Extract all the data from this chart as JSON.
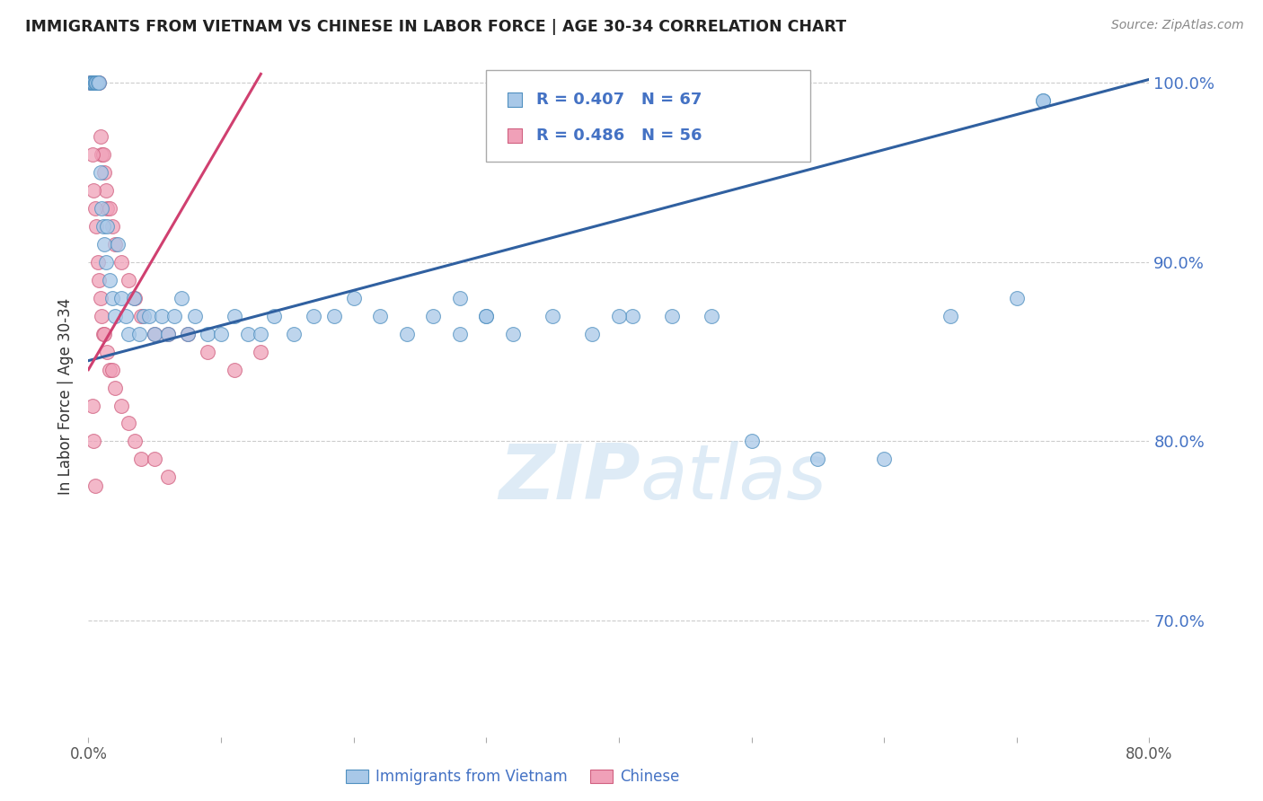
{
  "title": "IMMIGRANTS FROM VIETNAM VS CHINESE IN LABOR FORCE | AGE 30-34 CORRELATION CHART",
  "source": "Source: ZipAtlas.com",
  "ylabel": "In Labor Force | Age 30-34",
  "xlim": [
    0.0,
    0.8
  ],
  "ylim": [
    0.635,
    1.015
  ],
  "y_ticks": [
    0.7,
    0.8,
    0.9,
    1.0
  ],
  "y_tick_labels": [
    "70.0%",
    "80.0%",
    "90.0%",
    "100.0%"
  ],
  "x_ticks": [
    0.0,
    0.1,
    0.2,
    0.3,
    0.4,
    0.5,
    0.6,
    0.7,
    0.8
  ],
  "x_tick_labels": [
    "0.0%",
    "",
    "",
    "",
    "",
    "",
    "",
    "",
    "80.0%"
  ],
  "legend_blue_r": "R = 0.407",
  "legend_blue_n": "N = 67",
  "legend_pink_r": "R = 0.486",
  "legend_pink_n": "N = 56",
  "blue_fill": "#a8c8e8",
  "blue_edge": "#5090c0",
  "pink_fill": "#f0a0b8",
  "pink_edge": "#d06080",
  "blue_line": "#3060a0",
  "pink_line": "#d04070",
  "watermark_zip": "ZIP",
  "watermark_atlas": "atlas",
  "bottom_legend_blue": "Immigrants from Vietnam",
  "bottom_legend_pink": "Chinese",
  "vietnam_x": [
    0.002,
    0.002,
    0.003,
    0.003,
    0.004,
    0.004,
    0.005,
    0.005,
    0.006,
    0.006,
    0.007,
    0.008,
    0.009,
    0.01,
    0.011,
    0.012,
    0.013,
    0.014,
    0.016,
    0.018,
    0.02,
    0.022,
    0.025,
    0.028,
    0.03,
    0.034,
    0.038,
    0.042,
    0.046,
    0.05,
    0.055,
    0.06,
    0.065,
    0.07,
    0.075,
    0.08,
    0.09,
    0.1,
    0.11,
    0.12,
    0.13,
    0.14,
    0.155,
    0.17,
    0.185,
    0.2,
    0.22,
    0.24,
    0.26,
    0.28,
    0.3,
    0.32,
    0.35,
    0.38,
    0.41,
    0.44,
    0.47,
    0.5,
    0.55,
    0.6,
    0.65,
    0.7,
    0.72,
    0.28,
    0.3,
    0.72,
    0.4
  ],
  "vietnam_y": [
    1.0,
    1.0,
    1.0,
    1.0,
    1.0,
    1.0,
    1.0,
    1.0,
    1.0,
    1.0,
    1.0,
    1.0,
    0.95,
    0.93,
    0.92,
    0.91,
    0.9,
    0.92,
    0.89,
    0.88,
    0.87,
    0.91,
    0.88,
    0.87,
    0.86,
    0.88,
    0.86,
    0.87,
    0.87,
    0.86,
    0.87,
    0.86,
    0.87,
    0.88,
    0.86,
    0.87,
    0.86,
    0.86,
    0.87,
    0.86,
    0.86,
    0.87,
    0.86,
    0.87,
    0.87,
    0.88,
    0.87,
    0.86,
    0.87,
    0.88,
    0.87,
    0.86,
    0.87,
    0.86,
    0.87,
    0.87,
    0.87,
    0.8,
    0.79,
    0.79,
    0.87,
    0.88,
    0.99,
    0.86,
    0.87,
    0.99,
    0.87
  ],
  "chinese_x": [
    0.002,
    0.002,
    0.003,
    0.003,
    0.003,
    0.004,
    0.004,
    0.005,
    0.005,
    0.006,
    0.006,
    0.007,
    0.007,
    0.008,
    0.009,
    0.01,
    0.011,
    0.012,
    0.013,
    0.014,
    0.016,
    0.018,
    0.02,
    0.025,
    0.03,
    0.035,
    0.04,
    0.05,
    0.06,
    0.075,
    0.09,
    0.11,
    0.13,
    0.003,
    0.004,
    0.005,
    0.006,
    0.007,
    0.008,
    0.009,
    0.01,
    0.011,
    0.012,
    0.014,
    0.016,
    0.018,
    0.02,
    0.025,
    0.03,
    0.035,
    0.04,
    0.05,
    0.06,
    0.003,
    0.004,
    0.005
  ],
  "chinese_y": [
    1.0,
    1.0,
    1.0,
    1.0,
    1.0,
    1.0,
    1.0,
    1.0,
    1.0,
    1.0,
    1.0,
    1.0,
    1.0,
    1.0,
    0.97,
    0.96,
    0.96,
    0.95,
    0.94,
    0.93,
    0.93,
    0.92,
    0.91,
    0.9,
    0.89,
    0.88,
    0.87,
    0.86,
    0.86,
    0.86,
    0.85,
    0.84,
    0.85,
    0.96,
    0.94,
    0.93,
    0.92,
    0.9,
    0.89,
    0.88,
    0.87,
    0.86,
    0.86,
    0.85,
    0.84,
    0.84,
    0.83,
    0.82,
    0.81,
    0.8,
    0.79,
    0.79,
    0.78,
    0.82,
    0.8,
    0.775
  ],
  "blue_trendline_x": [
    0.0,
    0.8
  ],
  "blue_trendline_y": [
    0.845,
    1.002
  ],
  "pink_trendline_x": [
    0.0,
    0.13
  ],
  "pink_trendline_y": [
    0.84,
    1.005
  ]
}
